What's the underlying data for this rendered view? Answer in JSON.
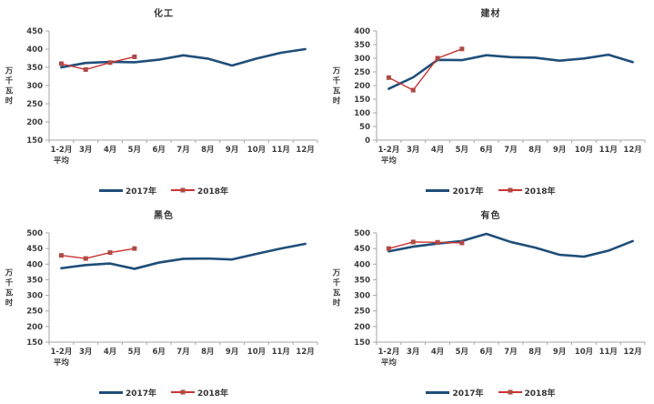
{
  "colors": {
    "series_2017": "#1F4E79",
    "series_2018_line": "#CC3333",
    "series_2018_marker": "#AE4A44",
    "axis": "#A6A6A6",
    "text": "#3B3B3B"
  },
  "legend": {
    "series_2017": "2017年",
    "series_2018": "2018年"
  },
  "chart_data": [
    {
      "type": "line",
      "title": "化工",
      "ylabel": "万千瓦时",
      "xlabel": "",
      "categories": [
        "1-2月\n平均",
        "3月",
        "4月",
        "5月",
        "6月",
        "7月",
        "8月",
        "9月",
        "10月",
        "11月",
        "12月"
      ],
      "ylim": [
        150,
        450
      ],
      "ytick_step": 50,
      "grid": false,
      "legend_position": "bottom",
      "series": [
        {
          "name": "2017年",
          "values": [
            350,
            362,
            365,
            364,
            371,
            383,
            374,
            355,
            374,
            390,
            400
          ]
        },
        {
          "name": "2018年",
          "values": [
            360,
            344,
            363,
            379
          ]
        }
      ]
    },
    {
      "type": "line",
      "title": "建材",
      "ylabel": "万千瓦时",
      "xlabel": "",
      "categories": [
        "1-2月\n平均",
        "3月",
        "4月",
        "5月",
        "6月",
        "7月",
        "8月",
        "9月",
        "10月",
        "11月",
        "12月"
      ],
      "ylim": [
        0,
        400
      ],
      "ytick_step": 50,
      "grid": false,
      "legend_position": "bottom",
      "series": [
        {
          "name": "2017年",
          "values": [
            188,
            230,
            294,
            293,
            311,
            304,
            302,
            291,
            299,
            313,
            286
          ]
        },
        {
          "name": "2018年",
          "values": [
            229,
            183,
            300,
            334
          ]
        }
      ]
    },
    {
      "type": "line",
      "title": "黑色",
      "ylabel": "万千瓦时",
      "xlabel": "",
      "categories": [
        "1-2月\n平均",
        "3月",
        "4月",
        "5月",
        "6月",
        "7月",
        "8月",
        "9月",
        "10月",
        "11月",
        "12月"
      ],
      "ylim": [
        150,
        500
      ],
      "ytick_step": 50,
      "grid": false,
      "legend_position": "bottom",
      "series": [
        {
          "name": "2017年",
          "values": [
            387,
            397,
            402,
            385,
            405,
            417,
            418,
            415,
            433,
            450,
            465
          ]
        },
        {
          "name": "2018年",
          "values": [
            428,
            418,
            437,
            450
          ]
        }
      ]
    },
    {
      "type": "line",
      "title": "有色",
      "ylabel": "万千瓦时",
      "xlabel": "",
      "categories": [
        "1-2月\n平均",
        "3月",
        "4月",
        "5月",
        "6月",
        "7月",
        "8月",
        "9月",
        "10月",
        "11月",
        "12月"
      ],
      "ylim": [
        150,
        500
      ],
      "ytick_step": 50,
      "grid": false,
      "legend_position": "bottom",
      "series": [
        {
          "name": "2017年",
          "values": [
            441,
            456,
            466,
            474,
            497,
            471,
            453,
            430,
            424,
            443,
            474
          ]
        },
        {
          "name": "2018年",
          "values": [
            450,
            471,
            470,
            468
          ]
        }
      ]
    }
  ]
}
